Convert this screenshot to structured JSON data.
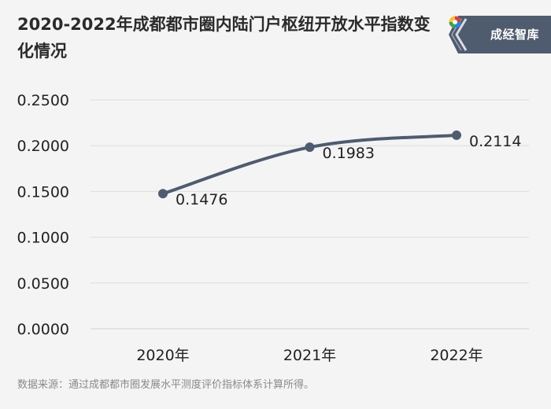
{
  "title": "2020-2022年成都都市圈内陆门户枢纽开放水平指数变化情况",
  "brand": {
    "name": "成经智库",
    "colors": {
      "background": "#4f5c6f",
      "accent_light": "#d9dde3"
    }
  },
  "source": "数据来源：通过成都都市圈发展水平测度评价指标体系计算所得。",
  "chart_data": {
    "type": "line",
    "categories": [
      "2020年",
      "2021年",
      "2022年"
    ],
    "series": [
      {
        "values": [
          0.1476,
          0.1983,
          0.2114
        ],
        "labels": [
          "0.1476",
          "0.1983",
          "0.2114"
        ]
      }
    ],
    "y_ticks": [
      "0.0000",
      "0.0500",
      "0.1000",
      "0.1500",
      "0.2000",
      "0.2500"
    ],
    "ylim": [
      0,
      0.25
    ],
    "grid": true,
    "line_color": "#4f5c6f",
    "marker_color": "#4f5c6f"
  }
}
